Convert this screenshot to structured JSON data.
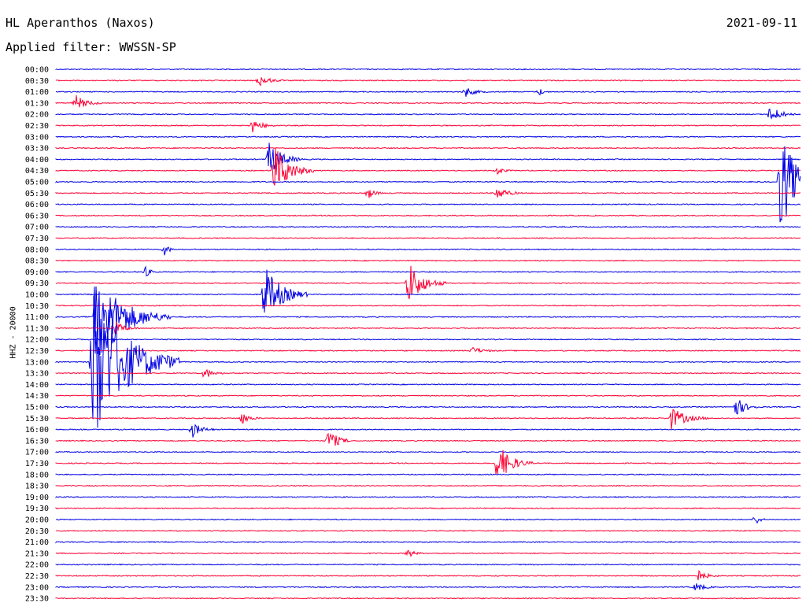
{
  "header": {
    "station": "HL Aperanthos (Naxos)",
    "date": "2021-09-11",
    "filter": "Applied filter: WWSSN-SP"
  },
  "colors": {
    "blue": "#0000e6",
    "red": "#ff0033"
  },
  "chart_data": {
    "type": "line",
    "title": "HL Aperanthos (Naxos)",
    "ylabel": "HHZ - 20000",
    "x_unit": "minutes",
    "xlim": [
      0,
      30
    ],
    "series_colors_alternate": [
      "blue",
      "red"
    ],
    "rows": [
      {
        "label": "00:00",
        "color": "blue"
      },
      {
        "label": "00:30",
        "color": "red"
      },
      {
        "label": "01:00",
        "color": "blue"
      },
      {
        "label": "01:30",
        "color": "red"
      },
      {
        "label": "02:00",
        "color": "blue"
      },
      {
        "label": "02:30",
        "color": "red"
      },
      {
        "label": "03:00",
        "color": "blue"
      },
      {
        "label": "03:30",
        "color": "red"
      },
      {
        "label": "04:00",
        "color": "blue"
      },
      {
        "label": "04:30",
        "color": "red"
      },
      {
        "label": "05:00",
        "color": "blue"
      },
      {
        "label": "05:30",
        "color": "red"
      },
      {
        "label": "06:00",
        "color": "blue"
      },
      {
        "label": "06:30",
        "color": "red"
      },
      {
        "label": "07:00",
        "color": "blue"
      },
      {
        "label": "07:30",
        "color": "red"
      },
      {
        "label": "08:00",
        "color": "blue"
      },
      {
        "label": "08:30",
        "color": "red"
      },
      {
        "label": "09:00",
        "color": "blue"
      },
      {
        "label": "09:30",
        "color": "red"
      },
      {
        "label": "10:00",
        "color": "blue"
      },
      {
        "label": "10:30",
        "color": "red"
      },
      {
        "label": "11:00",
        "color": "blue"
      },
      {
        "label": "11:30",
        "color": "red"
      },
      {
        "label": "12:00",
        "color": "blue"
      },
      {
        "label": "12:30",
        "color": "red"
      },
      {
        "label": "13:00",
        "color": "blue"
      },
      {
        "label": "13:30",
        "color": "red"
      },
      {
        "label": "14:00",
        "color": "blue"
      },
      {
        "label": "14:30",
        "color": "red"
      },
      {
        "label": "15:00",
        "color": "blue"
      },
      {
        "label": "15:30",
        "color": "red"
      },
      {
        "label": "16:00",
        "color": "blue"
      },
      {
        "label": "16:30",
        "color": "red"
      },
      {
        "label": "17:00",
        "color": "blue"
      },
      {
        "label": "17:30",
        "color": "red"
      },
      {
        "label": "18:00",
        "color": "blue"
      },
      {
        "label": "18:30",
        "color": "red"
      },
      {
        "label": "19:00",
        "color": "blue"
      },
      {
        "label": "19:30",
        "color": "red"
      },
      {
        "label": "20:00",
        "color": "blue"
      },
      {
        "label": "20:30",
        "color": "red"
      },
      {
        "label": "21:00",
        "color": "blue"
      },
      {
        "label": "21:30",
        "color": "red"
      },
      {
        "label": "22:00",
        "color": "blue"
      },
      {
        "label": "22:30",
        "color": "red"
      },
      {
        "label": "23:00",
        "color": "blue"
      },
      {
        "label": "23:30",
        "color": "red"
      }
    ],
    "events": [
      {
        "row": 1,
        "t": 8.2,
        "amp": 0.5,
        "dur": 1.0
      },
      {
        "row": 2,
        "t": 16.5,
        "amp": 0.45,
        "dur": 0.9
      },
      {
        "row": 2,
        "t": 19.5,
        "amp": 0.3,
        "dur": 0.4
      },
      {
        "row": 3,
        "t": 0.8,
        "amp": 0.7,
        "dur": 1.1
      },
      {
        "row": 4,
        "t": 28.8,
        "amp": 0.8,
        "dur": 1.0
      },
      {
        "row": 5,
        "t": 7.9,
        "amp": 0.6,
        "dur": 1.0
      },
      {
        "row": 8,
        "t": 8.6,
        "amp": 1.5,
        "dur": 1.4
      },
      {
        "row": 9,
        "t": 8.8,
        "amp": 2.3,
        "dur": 1.6
      },
      {
        "row": 9,
        "t": 17.8,
        "amp": 0.4,
        "dur": 0.5
      },
      {
        "row": 10,
        "t": 29.2,
        "amp": 4.5,
        "dur": 1.8
      },
      {
        "row": 11,
        "t": 12.6,
        "amp": 0.5,
        "dur": 0.6
      },
      {
        "row": 11,
        "t": 17.8,
        "amp": 0.6,
        "dur": 1.0
      },
      {
        "row": 16,
        "t": 4.4,
        "amp": 0.6,
        "dur": 0.4
      },
      {
        "row": 18,
        "t": 3.6,
        "amp": 0.5,
        "dur": 0.5
      },
      {
        "row": 19,
        "t": 14.2,
        "amp": 2.0,
        "dur": 1.5
      },
      {
        "row": 20,
        "t": 8.4,
        "amp": 2.6,
        "dur": 1.8
      },
      {
        "row": 22,
        "t": 1.6,
        "amp": 4.0,
        "dur": 3.0
      },
      {
        "row": 23,
        "t": 2.4,
        "amp": 0.6,
        "dur": 1.0
      },
      {
        "row": 25,
        "t": 16.8,
        "amp": 0.3,
        "dur": 1.0
      },
      {
        "row": 26,
        "t": 1.5,
        "amp": 7.5,
        "dur": 3.5
      },
      {
        "row": 27,
        "t": 6.0,
        "amp": 0.5,
        "dur": 0.8
      },
      {
        "row": 30,
        "t": 27.4,
        "amp": 0.9,
        "dur": 1.0
      },
      {
        "row": 31,
        "t": 7.5,
        "amp": 0.5,
        "dur": 0.8
      },
      {
        "row": 31,
        "t": 24.8,
        "amp": 1.0,
        "dur": 1.5
      },
      {
        "row": 32,
        "t": 5.5,
        "amp": 0.7,
        "dur": 0.9
      },
      {
        "row": 33,
        "t": 11.0,
        "amp": 1.0,
        "dur": 1.0
      },
      {
        "row": 35,
        "t": 17.8,
        "amp": 1.8,
        "dur": 1.4
      },
      {
        "row": 40,
        "t": 28.2,
        "amp": 0.5,
        "dur": 0.4
      },
      {
        "row": 43,
        "t": 14.2,
        "amp": 0.4,
        "dur": 0.6
      },
      {
        "row": 45,
        "t": 25.9,
        "amp": 0.5,
        "dur": 0.8
      },
      {
        "row": 46,
        "t": 25.8,
        "amp": 0.4,
        "dur": 0.8
      }
    ]
  }
}
